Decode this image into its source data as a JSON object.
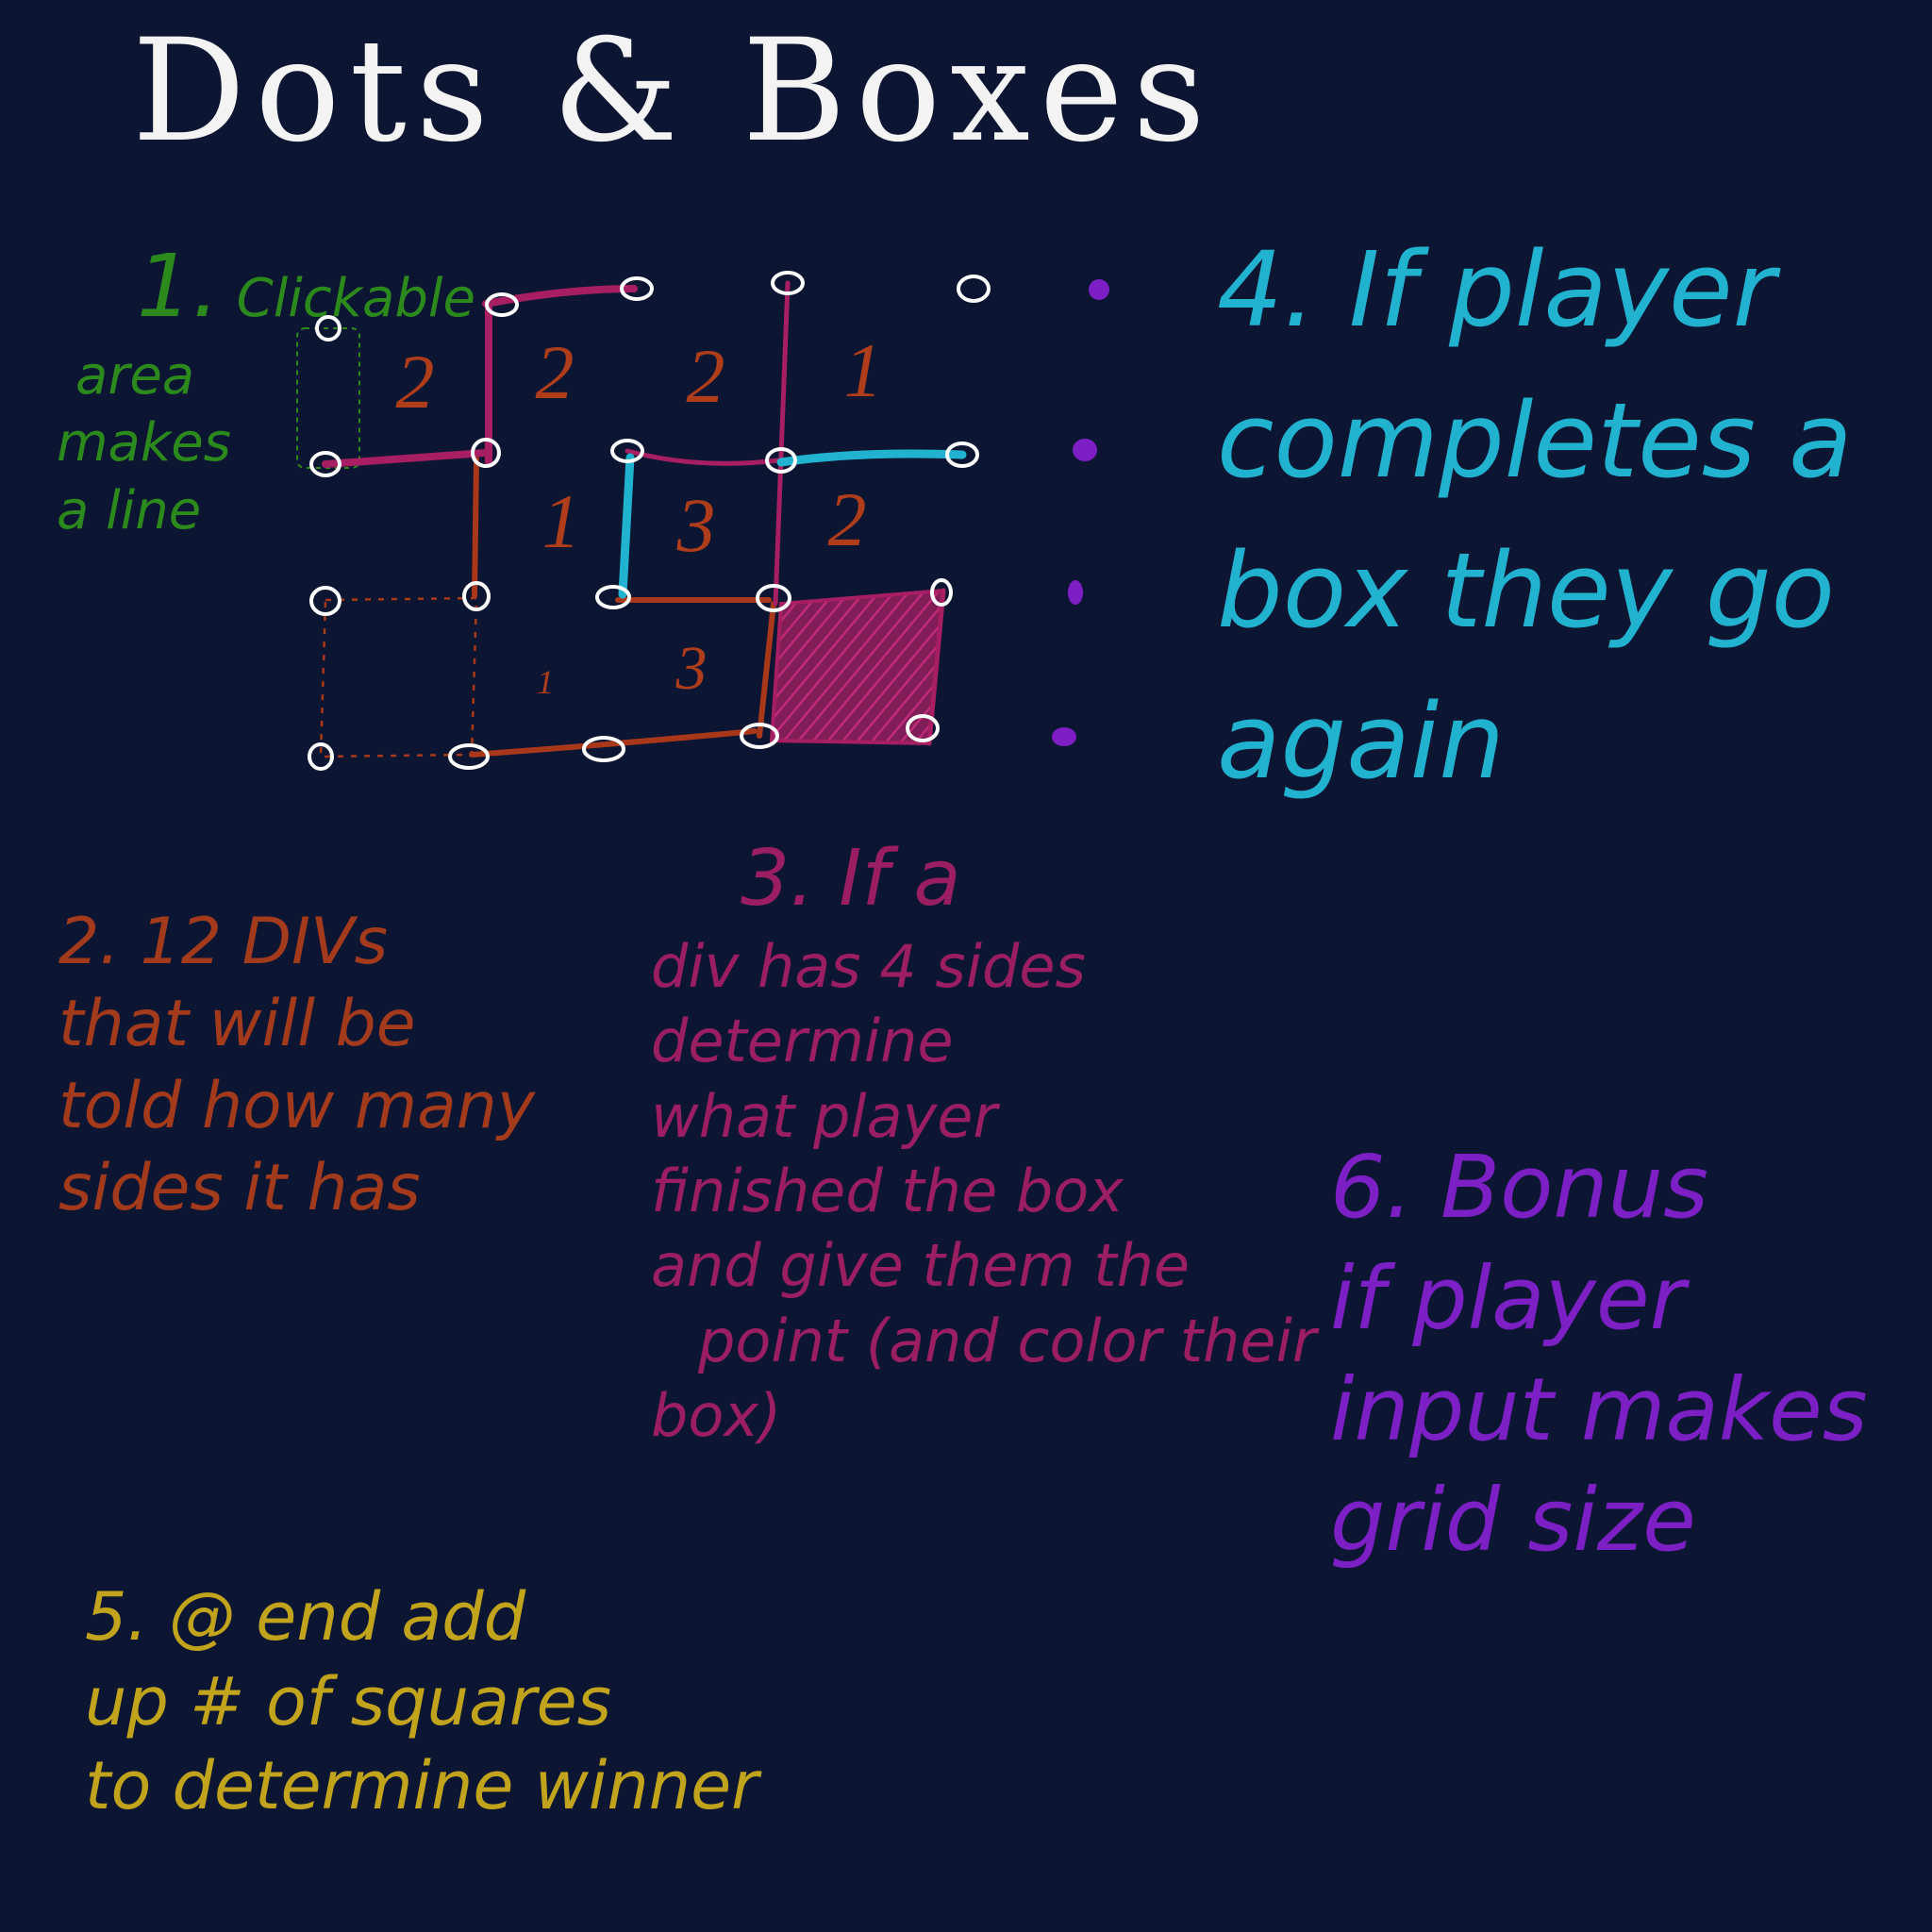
{
  "title": "Dots & Boxes",
  "notes": {
    "n1": {
      "num": "1.",
      "lines": [
        "Clickable",
        "area",
        "makes",
        "a line"
      ]
    },
    "n2": {
      "lines": [
        "2. 12 DIVs",
        "that will be",
        "told how many",
        "sides it has"
      ]
    },
    "n3": {
      "lines": [
        "3. If a",
        "div has 4 sides",
        "determine",
        "what player",
        "finished the box",
        "and give them the",
        "point (and color their",
        "box)"
      ]
    },
    "n4": {
      "lines": [
        "4. If player",
        "completes a",
        "box they go",
        "again"
      ]
    },
    "n5": {
      "lines": [
        "5. @ end add",
        "up # of squares",
        "to determine winner"
      ]
    },
    "n6": {
      "lines": [
        "6. Bonus",
        "if player",
        "input makes",
        "grid size"
      ]
    }
  },
  "board": {
    "box_counts": [
      [
        "2",
        "2",
        "2",
        "1"
      ],
      [
        "",
        "1",
        "3",
        "2"
      ],
      [
        "",
        "1",
        "3",
        ""
      ]
    ],
    "shaded_box": [
      2,
      3
    ],
    "colors": {
      "dot": "#ffffff",
      "magenta": "#a81e62",
      "rust": "#a9381a",
      "cyan": "#21b2d0",
      "purple": "#7d1fc4",
      "green": "#2c8a1c",
      "count": "#b03d1a"
    }
  }
}
